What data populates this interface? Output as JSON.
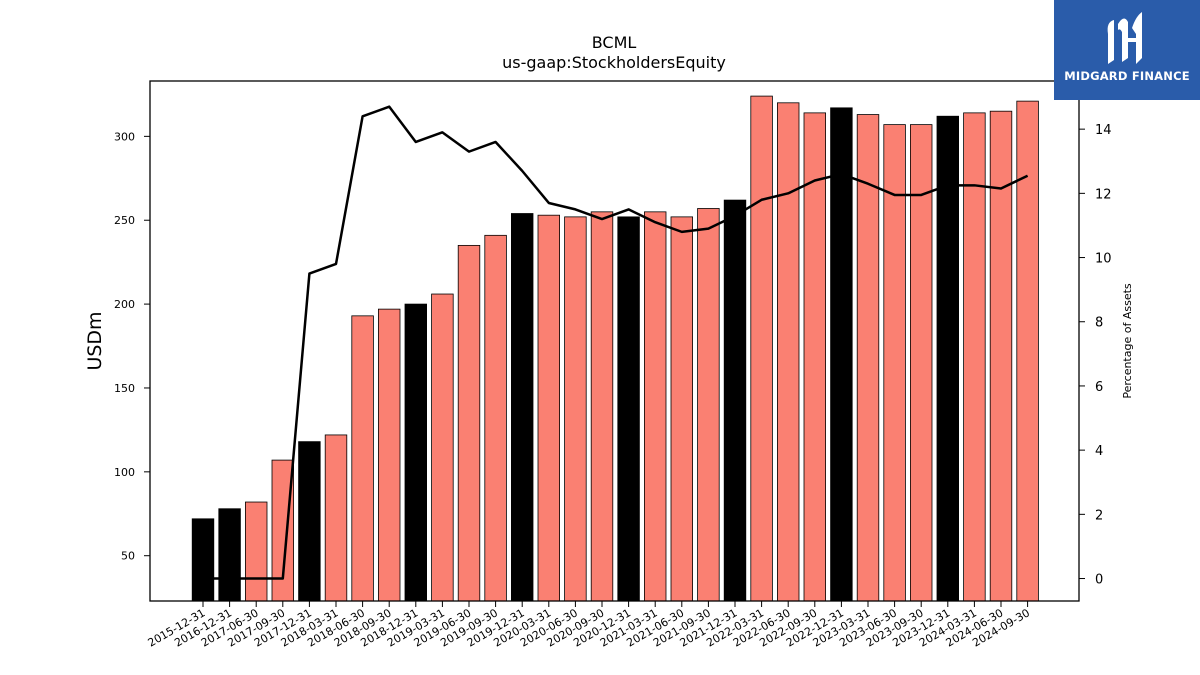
{
  "logo": {
    "text": "MIDGARD FINANCE",
    "color": "#2a5caa"
  },
  "chart_data": {
    "type": "bar",
    "title": "BCML",
    "subtitle": "us-gaap:StockholdersEquity",
    "ylabel": "USDm",
    "y2label": "Percentage of Assets",
    "ylim": [
      23,
      333
    ],
    "yticks": [
      50,
      100,
      150,
      200,
      250,
      300
    ],
    "y2lim": [
      -0.7,
      15.5
    ],
    "y2ticks": [
      0,
      2,
      4,
      6,
      8,
      10,
      12,
      14
    ],
    "categories": [
      "2015-12-31",
      "2016-12-31",
      "2017-06-30",
      "2017-09-30",
      "2017-12-31",
      "2018-03-31",
      "2018-06-30",
      "2018-09-30",
      "2018-12-31",
      "2019-03-31",
      "2019-06-30",
      "2019-09-30",
      "2019-12-31",
      "2020-03-31",
      "2020-06-30",
      "2020-09-30",
      "2020-12-31",
      "2021-03-31",
      "2021-06-30",
      "2021-09-30",
      "2021-12-31",
      "2022-03-31",
      "2022-06-30",
      "2022-09-30",
      "2022-12-31",
      "2023-03-31",
      "2023-06-30",
      "2023-09-30",
      "2023-12-31",
      "2024-03-31",
      "2024-06-30",
      "2024-09-30"
    ],
    "series": [
      {
        "type": "bar",
        "values": [
          72,
          78,
          82,
          107,
          118,
          122,
          193,
          197,
          200,
          206,
          235,
          241,
          254,
          253,
          252,
          255,
          252,
          255,
          252,
          257,
          262,
          324,
          320,
          314,
          317,
          313,
          307,
          307,
          312,
          314,
          315,
          321
        ],
        "colors": [
          "#000000",
          "#000000",
          "#fa8072",
          "#fa8072",
          "#000000",
          "#fa8072",
          "#fa8072",
          "#fa8072",
          "#000000",
          "#fa8072",
          "#fa8072",
          "#fa8072",
          "#000000",
          "#fa8072",
          "#fa8072",
          "#fa8072",
          "#000000",
          "#fa8072",
          "#fa8072",
          "#fa8072",
          "#000000",
          "#fa8072",
          "#fa8072",
          "#fa8072",
          "#000000",
          "#fa8072",
          "#fa8072",
          "#fa8072",
          "#000000",
          "#fa8072",
          "#fa8072",
          "#fa8072"
        ]
      },
      {
        "type": "line",
        "axis": "right",
        "values": [
          0.0,
          0.0,
          0.0,
          0.0,
          9.5,
          9.8,
          14.4,
          14.7,
          13.6,
          13.9,
          13.3,
          13.6,
          12.7,
          11.7,
          11.5,
          11.2,
          11.5,
          11.1,
          10.8,
          10.9,
          11.3,
          11.8,
          12.0,
          12.4,
          12.6,
          12.3,
          11.95,
          11.95,
          12.25,
          12.25,
          12.15,
          12.55
        ],
        "color": "#000000"
      }
    ]
  }
}
